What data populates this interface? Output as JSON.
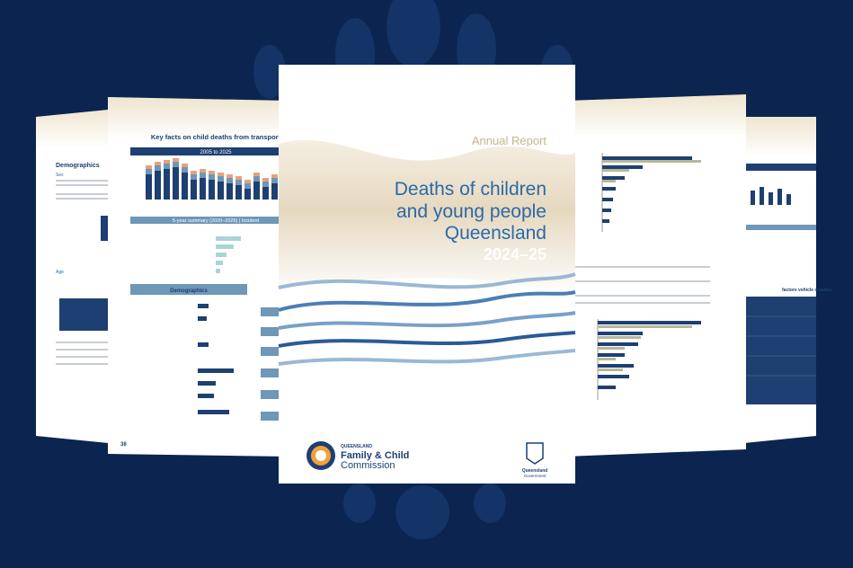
{
  "cover": {
    "kicker": "Annual Report",
    "title_lines": [
      "Deaths of children",
      "and young people",
      "Queensland"
    ],
    "year": "2024–25",
    "logo": {
      "top": "QUEENSLAND",
      "name": "Family & Child",
      "sub": "Commission"
    },
    "government": [
      "Queensland",
      "Government"
    ]
  },
  "left_page": {
    "heading": "Key facts on child deaths from transport",
    "band": "2005 to 2025",
    "summary": "5-year summary (2020–2025) | Incident",
    "section": "Demographics",
    "page_number": "38"
  },
  "far_left_page": {
    "heading": "Demographics",
    "subheading": "Sex",
    "age": "Age"
  },
  "far_right_page": {
    "section": "factors vehicle crashes"
  }
}
